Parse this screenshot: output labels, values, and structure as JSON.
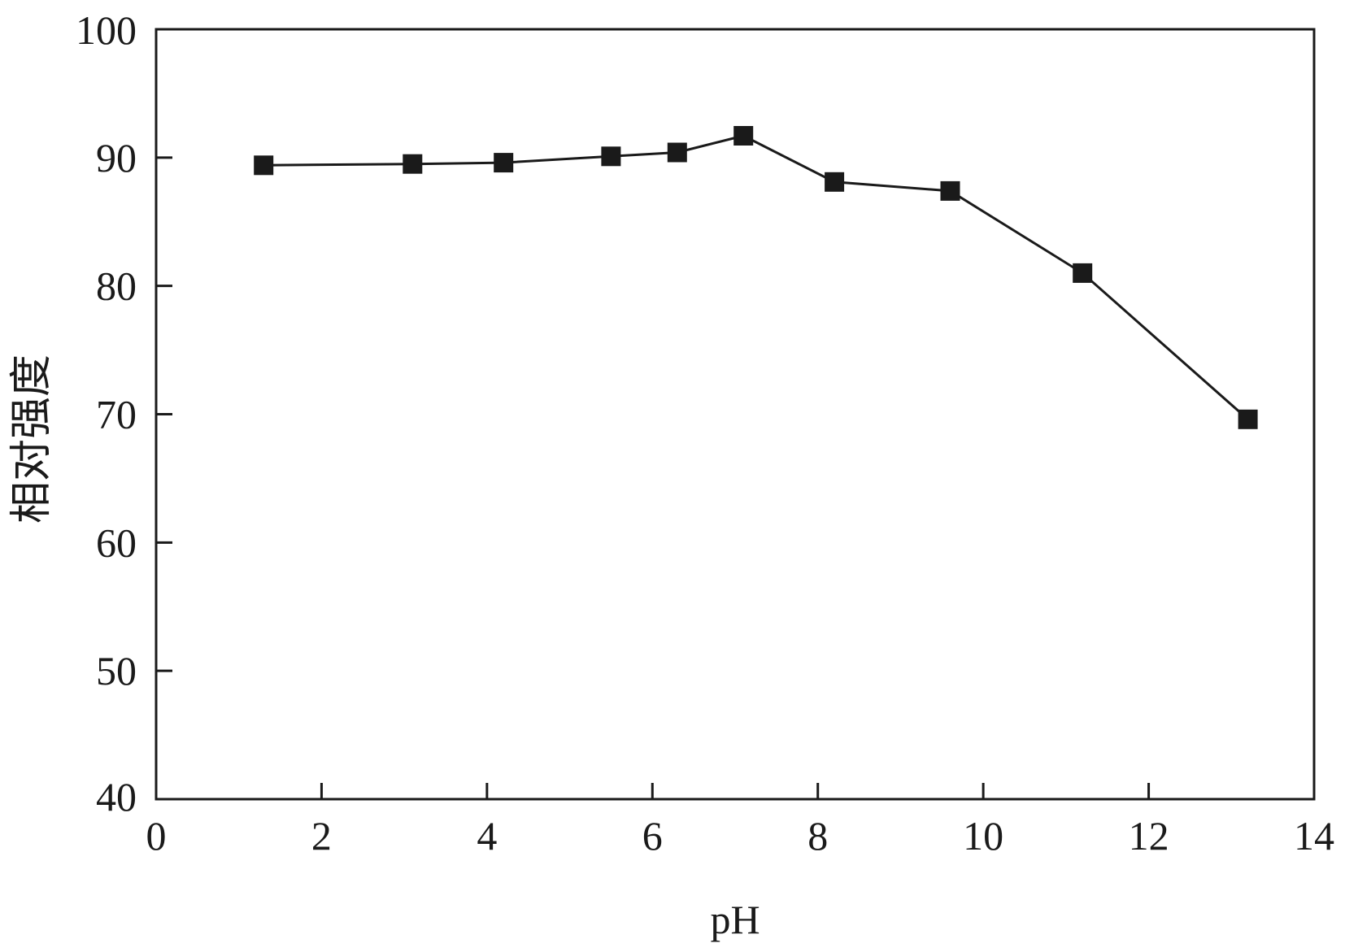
{
  "chart_data": {
    "type": "line",
    "title": "",
    "xlabel": "pH",
    "ylabel": "相对强度",
    "xlim": [
      0,
      14
    ],
    "ylim": [
      40,
      100
    ],
    "x_ticks": [
      0,
      2,
      4,
      6,
      8,
      10,
      12,
      14
    ],
    "y_ticks": [
      40,
      50,
      60,
      70,
      80,
      90,
      100
    ],
    "x_tick_labels": [
      "0",
      "2",
      "4",
      "6",
      "8",
      "10",
      "12",
      "14"
    ],
    "y_tick_labels": [
      "40",
      "50",
      "60",
      "70",
      "80",
      "90",
      "100"
    ],
    "grid": false,
    "legend": "none",
    "marker": "square",
    "series": [
      {
        "x": [
          1.3,
          3.1,
          4.2,
          5.5,
          6.3,
          7.1,
          8.2,
          9.6,
          11.2,
          13.2
        ],
        "y": [
          89.4,
          89.5,
          89.6,
          90.1,
          90.4,
          91.7,
          88.1,
          87.4,
          81.0,
          69.6
        ]
      }
    ]
  },
  "colors": {
    "line": "#1a1a1a",
    "marker": "#1a1a1a",
    "axis": "#1a1a1a",
    "background": "#ffffff"
  }
}
